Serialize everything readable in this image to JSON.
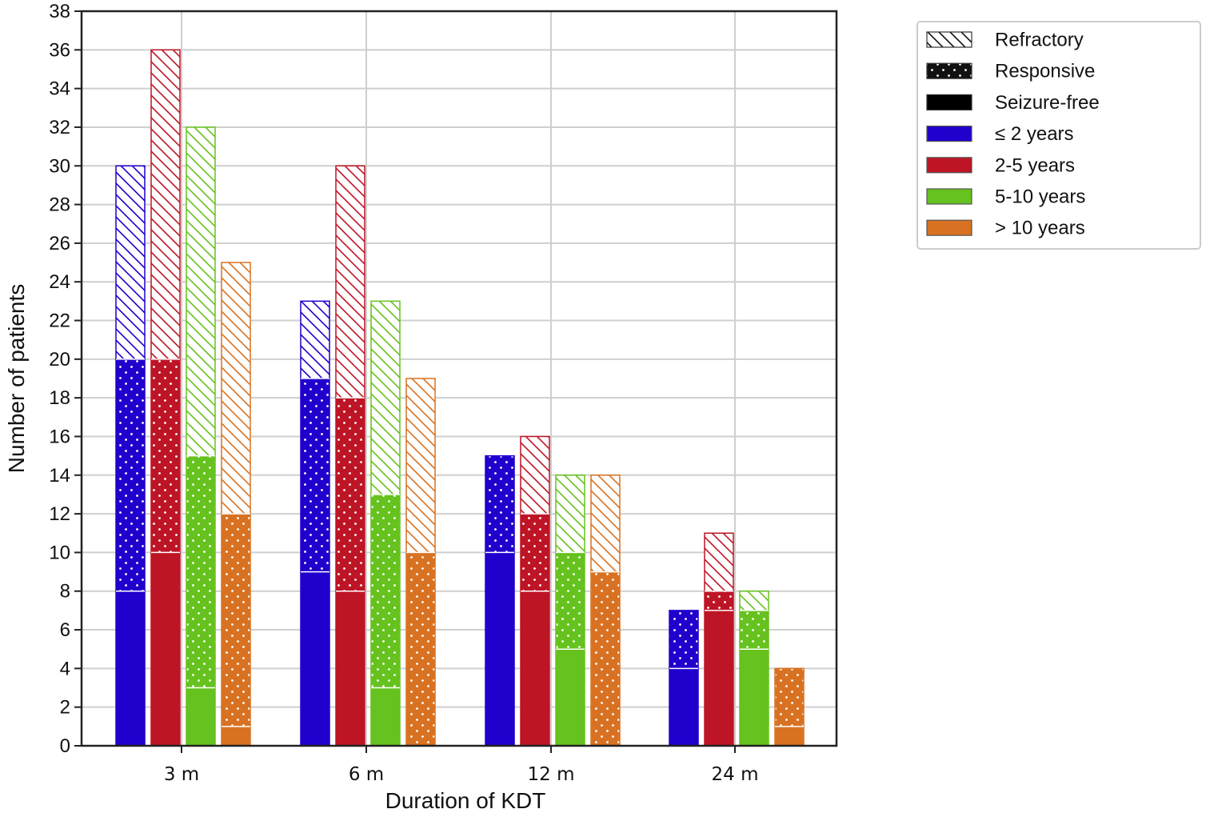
{
  "chart_data": {
    "type": "bar",
    "title": "",
    "xlabel": "Duration of KDT",
    "ylabel": "Number of patients",
    "categories": [
      "3 m",
      "6 m",
      "12 m",
      "24 m"
    ],
    "ylim": [
      0,
      38
    ],
    "yticks": [
      0,
      2,
      4,
      6,
      8,
      10,
      12,
      14,
      16,
      18,
      20,
      22,
      24,
      26,
      28,
      30,
      32,
      34,
      36,
      38
    ],
    "grid": true,
    "legend_position": "right (outside plot area, top)",
    "legend": [
      {
        "label": "Refractory",
        "kind": "pattern",
        "pattern": "hatch"
      },
      {
        "label": "Responsive",
        "kind": "pattern",
        "pattern": "dots"
      },
      {
        "label": "Seizure-free",
        "kind": "pattern",
        "pattern": "solid"
      },
      {
        "label": "≤ 2 years",
        "kind": "color",
        "color": "#1f00cc"
      },
      {
        "label": "2-5 years",
        "kind": "color",
        "color": "#be1526"
      },
      {
        "label": "5-10 years",
        "kind": "color",
        "color": "#66c21e"
      },
      {
        "label": "> 10 years",
        "kind": "color",
        "color": "#d87222"
      }
    ],
    "series": [
      {
        "name": "≤ 2 years",
        "color": "#1f00cc",
        "seizure_free": [
          8,
          9,
          10,
          4
        ],
        "responsive": [
          12,
          10,
          5,
          3
        ],
        "refractory": [
          10,
          4,
          0,
          0
        ],
        "total": [
          30,
          23,
          15,
          7
        ]
      },
      {
        "name": "2-5 years",
        "color": "#be1526",
        "seizure_free": [
          10,
          8,
          8,
          7
        ],
        "responsive": [
          10,
          10,
          4,
          1
        ],
        "refractory": [
          16,
          12,
          4,
          3
        ],
        "total": [
          36,
          30,
          16,
          11
        ]
      },
      {
        "name": "5-10 years",
        "color": "#66c21e",
        "seizure_free": [
          3,
          3,
          5,
          5
        ],
        "responsive": [
          12,
          10,
          5,
          2
        ],
        "refractory": [
          17,
          10,
          4,
          1
        ],
        "total": [
          32,
          23,
          14,
          8
        ]
      },
      {
        "name": "> 10 years",
        "color": "#d87222",
        "seizure_free": [
          1,
          0,
          0,
          1
        ],
        "responsive": [
          11,
          10,
          9,
          3
        ],
        "refractory": [
          13,
          9,
          5,
          0
        ],
        "total": [
          25,
          19,
          14,
          4
        ]
      }
    ]
  }
}
